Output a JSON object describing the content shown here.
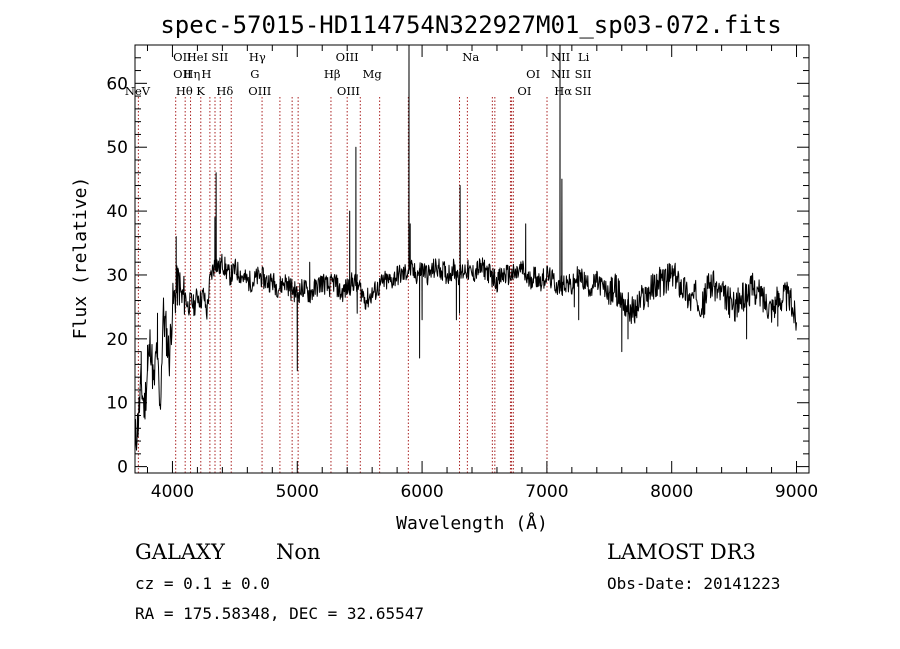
{
  "chart_data": {
    "type": "line",
    "title": "spec-57015-HD114754N322927M01_sp03-072.fits",
    "xlabel": "Wavelength (Å)",
    "ylabel": "Flux (relative)",
    "xlim": [
      3700,
      9100
    ],
    "ylim": [
      -1,
      66
    ],
    "xticks": [
      4000,
      5000,
      6000,
      7000,
      8000,
      9000
    ],
    "xtick_labels": [
      "4000",
      "5000",
      "6000",
      "7000",
      "8000",
      "9000"
    ],
    "yticks": [
      0,
      10,
      20,
      30,
      40,
      50,
      60
    ],
    "ytick_labels": [
      "0",
      "10",
      "20",
      "30",
      "40",
      "50",
      "60"
    ],
    "spectrum_color": "#000000",
    "line_marker_color": "#aa2222",
    "spectrum": {
      "x": [
        3700,
        3725,
        3750,
        3775,
        3800,
        3825,
        3850,
        3875,
        3900,
        3925,
        3950,
        3975,
        4000,
        4025,
        4050,
        4075,
        4100,
        4125,
        4150,
        4175,
        4200,
        4225,
        4250,
        4275,
        4300,
        4325,
        4350,
        4375,
        4400,
        4425,
        4450,
        4475,
        4500,
        4550,
        4600,
        4650,
        4700,
        4750,
        4800,
        4850,
        4900,
        4950,
        5000,
        5050,
        5100,
        5150,
        5200,
        5250,
        5300,
        5350,
        5400,
        5450,
        5500,
        5550,
        5600,
        5650,
        5700,
        5750,
        5800,
        5850,
        5900,
        5950,
        6000,
        6050,
        6100,
        6150,
        6200,
        6250,
        6300,
        6350,
        6400,
        6450,
        6500,
        6550,
        6600,
        6650,
        6700,
        6750,
        6800,
        6850,
        6900,
        6950,
        7000,
        7050,
        7100,
        7150,
        7200,
        7250,
        7300,
        7350,
        7400,
        7450,
        7500,
        7550,
        7600,
        7650,
        7700,
        7750,
        7800,
        7850,
        7900,
        7950,
        8000,
        8050,
        8100,
        8150,
        8200,
        8250,
        8300,
        8350,
        8400,
        8450,
        8500,
        8550,
        8600,
        8650,
        8700,
        8750,
        8800,
        8850,
        8900,
        8950,
        9000
      ],
      "y": [
        4,
        7,
        13,
        9,
        15,
        20,
        12,
        19,
        8,
        24,
        21,
        17,
        25,
        27,
        29,
        26,
        27,
        25,
        26,
        25,
        27,
        26,
        27,
        24,
        29,
        31,
        32,
        31,
        32,
        31,
        30,
        30,
        31,
        30,
        29,
        29,
        30,
        29,
        29,
        28,
        29,
        28,
        27,
        28,
        27,
        28,
        29,
        28,
        29,
        27,
        28,
        29,
        28,
        26,
        27,
        28,
        29,
        29,
        30,
        30,
        31,
        30,
        31,
        30,
        31,
        31,
        30,
        31,
        30,
        31,
        30,
        31,
        31,
        30,
        29,
        30,
        30,
        30,
        31,
        29,
        30,
        29,
        30,
        29,
        28,
        29,
        28,
        30,
        29,
        28,
        29,
        28,
        27,
        28,
        26,
        25,
        24,
        26,
        27,
        28,
        29,
        29,
        30,
        29,
        28,
        26,
        27,
        25,
        29,
        28,
        27,
        26,
        25,
        26,
        27,
        28,
        27,
        26,
        25,
        26,
        27,
        26,
        23
      ]
    },
    "peaks": [
      {
        "x": 3750,
        "y": 18
      },
      {
        "x": 3800,
        "y": 19
      },
      {
        "x": 3880,
        "y": 24
      },
      {
        "x": 4030,
        "y": 36
      },
      {
        "x": 4340,
        "y": 39
      },
      {
        "x": 4350,
        "y": 46
      },
      {
        "x": 4950,
        "y": 26
      },
      {
        "x": 5100,
        "y": 32
      },
      {
        "x": 5420,
        "y": 40
      },
      {
        "x": 5470,
        "y": 50
      },
      {
        "x": 5480,
        "y": 24
      },
      {
        "x": 5895,
        "y": 67
      },
      {
        "x": 5905,
        "y": 38
      },
      {
        "x": 6305,
        "y": 44
      },
      {
        "x": 6830,
        "y": 38
      },
      {
        "x": 7105,
        "y": 68
      },
      {
        "x": 7120,
        "y": 45
      },
      {
        "x": 7255,
        "y": 23
      },
      {
        "x": 7600,
        "y": 18
      },
      {
        "x": 8600,
        "y": 20
      },
      {
        "x": 9005,
        "y": 4
      }
    ],
    "dips": [
      {
        "x": 5000,
        "y": 15
      },
      {
        "x": 5980,
        "y": 17
      },
      {
        "x": 6000,
        "y": 23
      },
      {
        "x": 6275,
        "y": 23
      },
      {
        "x": 6300,
        "y": 24
      },
      {
        "x": 7220,
        "y": 25
      },
      {
        "x": 7650,
        "y": 20
      },
      {
        "x": 8850,
        "y": 22
      }
    ],
    "line_markers": {
      "wavelengths": [
        3727,
        4026,
        4102,
        4145,
        4227,
        4300,
        4341,
        4383,
        4471,
        4718,
        4861,
        4959,
        5007,
        5270,
        5400,
        5505,
        5660,
        5890,
        6300,
        6363,
        6563,
        6583,
        6708,
        6717,
        6731,
        7001
      ],
      "labels": [
        {
          "text": "NeV",
          "x": 3720,
          "row": 2
        },
        {
          "text": "OII",
          "x": 4080,
          "row": 0
        },
        {
          "text": "OII",
          "x": 4080,
          "row": 1
        },
        {
          "text": "Hθ",
          "x": 4095,
          "row": 2
        },
        {
          "text": "HeI",
          "x": 4200,
          "row": 0
        },
        {
          "text": "Hη",
          "x": 4155,
          "row": 1
        },
        {
          "text": "K",
          "x": 4225,
          "row": 2
        },
        {
          "text": "H",
          "x": 4272,
          "row": 1
        },
        {
          "text": "SII",
          "x": 4380,
          "row": 0
        },
        {
          "text": "Hδ",
          "x": 4420,
          "row": 2
        },
        {
          "text": "Hγ",
          "x": 4680,
          "row": 0
        },
        {
          "text": "G",
          "x": 4660,
          "row": 1
        },
        {
          "text": "OIII",
          "x": 4700,
          "row": 2
        },
        {
          "text": "OIII",
          "x": 5400,
          "row": 0
        },
        {
          "text": "Hβ",
          "x": 5280,
          "row": 1
        },
        {
          "text": "OIII",
          "x": 5410,
          "row": 2
        },
        {
          "text": "Mg",
          "x": 5600,
          "row": 1
        },
        {
          "text": "Na",
          "x": 6390,
          "row": 0
        },
        {
          "text": "OI",
          "x": 6890,
          "row": 1
        },
        {
          "text": "OI",
          "x": 6820,
          "row": 2
        },
        {
          "text": "NII",
          "x": 7110,
          "row": 0
        },
        {
          "text": "Li",
          "x": 7295,
          "row": 0
        },
        {
          "text": "NII",
          "x": 7110,
          "row": 1
        },
        {
          "text": "SII",
          "x": 7290,
          "row": 1
        },
        {
          "text": "Hα",
          "x": 7130,
          "row": 2
        },
        {
          "text": "SII",
          "x": 7290,
          "row": 2
        }
      ]
    }
  },
  "info": {
    "object_class": "GALAXY",
    "subclass": "Non",
    "cz": "cz = 0.1 ± 0.0",
    "radec": "RA = 175.58348, DEC =  32.65547",
    "survey": "LAMOST DR3",
    "obs_date": "Obs-Date: 20141223"
  }
}
